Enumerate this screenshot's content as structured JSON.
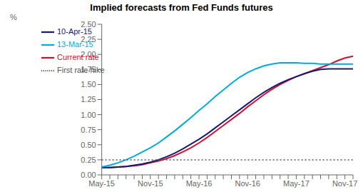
{
  "chart_data": {
    "type": "line",
    "title": "Implied forecasts from Fed Funds futures",
    "y_label": "%",
    "categories": [
      "May-15",
      null,
      null,
      null,
      null,
      null,
      "Nov-15",
      null,
      null,
      null,
      null,
      null,
      "May-16",
      null,
      null,
      null,
      null,
      null,
      "Nov-16",
      null,
      null,
      null,
      null,
      null,
      "May-17",
      null,
      null,
      null,
      null,
      null,
      "Nov-17",
      null
    ],
    "ylim": [
      0.0,
      2.5
    ],
    "yticks": [
      {
        "value": 0.0,
        "label": "0.00"
      },
      {
        "value": 0.25,
        "label": "0.25"
      },
      {
        "value": 0.5,
        "label": "0.50"
      },
      {
        "value": 0.75,
        "label": "0.75"
      },
      {
        "value": 1.0,
        "label": "1.00"
      },
      {
        "value": 1.25,
        "label": "1.25"
      },
      {
        "value": 1.5,
        "label": "1.50"
      },
      {
        "value": 1.75,
        "label": "1.75"
      },
      {
        "value": 2.0,
        "label": "2.00"
      },
      {
        "value": 2.25,
        "label": "2.25"
      },
      {
        "value": 2.5,
        "label": "2.50"
      }
    ],
    "grid": false,
    "legend": "upper left",
    "series": [
      {
        "name": "Current rate",
        "color": "#cc1133",
        "line_style": "solid",
        "values": [
          0.12,
          0.12,
          0.13,
          0.14,
          0.15,
          0.17,
          0.2,
          0.23,
          0.27,
          0.32,
          0.38,
          0.45,
          0.53,
          0.62,
          0.72,
          0.82,
          0.92,
          1.02,
          1.13,
          1.23,
          1.33,
          1.42,
          1.5,
          1.57,
          1.63,
          1.68,
          1.73,
          1.78,
          1.83,
          1.89,
          1.94,
          1.97
        ]
      },
      {
        "name": "10-Apr-15",
        "color": "#1a1a6e",
        "line_style": "solid",
        "values": [
          0.12,
          0.12,
          0.13,
          0.14,
          0.16,
          0.18,
          0.21,
          0.25,
          0.3,
          0.36,
          0.43,
          0.51,
          0.59,
          0.68,
          0.78,
          0.88,
          0.98,
          1.08,
          1.18,
          1.28,
          1.37,
          1.45,
          1.52,
          1.58,
          1.63,
          1.68,
          1.72,
          1.75,
          1.76,
          1.76,
          1.76,
          1.76
        ]
      },
      {
        "name": "13-Mar-15",
        "color": "#00aadd",
        "line_style": "solid",
        "values": [
          0.13,
          0.16,
          0.2,
          0.25,
          0.31,
          0.38,
          0.45,
          0.53,
          0.63,
          0.73,
          0.84,
          0.95,
          1.07,
          1.18,
          1.3,
          1.41,
          1.52,
          1.62,
          1.7,
          1.76,
          1.81,
          1.84,
          1.86,
          1.86,
          1.86,
          1.85,
          1.85,
          1.84,
          1.84,
          1.84,
          1.84,
          1.84
        ]
      },
      {
        "name": "First rate hike",
        "color": "#555555",
        "line_style": "dotted",
        "values": [
          0.25,
          0.25,
          0.25,
          0.25,
          0.25,
          0.25,
          0.25,
          0.25,
          0.25,
          0.25,
          0.25,
          0.25,
          0.25,
          0.25,
          0.25,
          0.25,
          0.25,
          0.25,
          0.25,
          0.25,
          0.25,
          0.25,
          0.25,
          0.25,
          0.25,
          0.25,
          0.25,
          0.25,
          0.25,
          0.25,
          0.25,
          0.25
        ]
      }
    ]
  }
}
